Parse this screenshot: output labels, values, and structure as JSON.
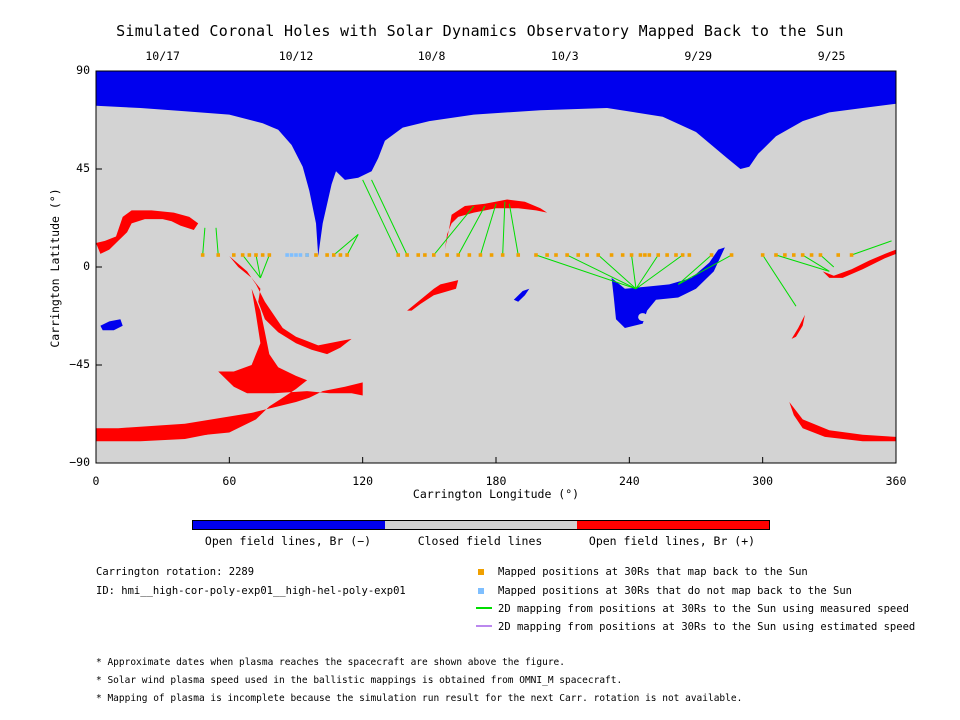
{
  "chart_data": {
    "type": "map",
    "title": "Simulated Coronal Holes with Solar Dynamics Observatory Mapped Back to the Sun",
    "xlabel": "Carrington Longitude (°)",
    "ylabel": "Carrington Latitude (°)",
    "xlim": [
      0,
      360
    ],
    "ylim": [
      -90,
      90
    ],
    "x_ticks": [
      "0",
      "60",
      "120",
      "180",
      "240",
      "300",
      "360"
    ],
    "y_ticks": [
      "90",
      "45",
      "0",
      "−45",
      "−90"
    ],
    "top_date_labels": [
      {
        "label": "10/17",
        "longitude": 30
      },
      {
        "label": "10/12",
        "longitude": 90
      },
      {
        "label": "10/8",
        "longitude": 151
      },
      {
        "label": "10/3",
        "longitude": 211
      },
      {
        "label": "9/29",
        "longitude": 271
      },
      {
        "label": "9/25",
        "longitude": 331
      }
    ],
    "colorbar": {
      "segments": [
        {
          "label": "Open field lines, Br (−)",
          "color": "#0000ee"
        },
        {
          "label": "Closed field lines",
          "color": "#d3d3d3"
        },
        {
          "label": "Open field lines, Br (+)",
          "color": "#ff0000"
        }
      ]
    },
    "mapped_positions_30Rs": {
      "latitude": 5.5,
      "map_back_longitudes": [
        48,
        55,
        62,
        66,
        69,
        72,
        75,
        78,
        95,
        99,
        104,
        107,
        110,
        113,
        136,
        140,
        145,
        148,
        152,
        158,
        163,
        168,
        173,
        178,
        183,
        190,
        198,
        203,
        207,
        212,
        217,
        221,
        226,
        232,
        237,
        241,
        245,
        247,
        249,
        253,
        257,
        261,
        264,
        267,
        277,
        286,
        300,
        306,
        310,
        314,
        318,
        322,
        326,
        334,
        340
      ],
      "no_map_back_longitudes": [
        86,
        88,
        90,
        92,
        95
      ]
    },
    "mapping_lines_2D_measured": [
      {
        "from": [
          48,
          5.5
        ],
        "to": [
          49,
          18
        ]
      },
      {
        "from": [
          55,
          5.5
        ],
        "to": [
          54,
          18
        ]
      },
      {
        "from": [
          66,
          5.5
        ],
        "to": [
          74,
          -5
        ]
      },
      {
        "from": [
          72,
          5.5
        ],
        "to": [
          74,
          -5
        ]
      },
      {
        "from": [
          78,
          5.5
        ],
        "to": [
          74,
          -5
        ]
      },
      {
        "from": [
          107,
          5.5
        ],
        "to": [
          118,
          15
        ]
      },
      {
        "from": [
          113,
          5.5
        ],
        "to": [
          118,
          15
        ]
      },
      {
        "from": [
          136,
          5.5
        ],
        "to": [
          120,
          40
        ]
      },
      {
        "from": [
          140,
          5.5
        ],
        "to": [
          124,
          40
        ]
      },
      {
        "from": [
          152,
          5.5
        ],
        "to": [
          170,
          28
        ]
      },
      {
        "from": [
          163,
          5.5
        ],
        "to": [
          175,
          28
        ]
      },
      {
        "from": [
          173,
          5.5
        ],
        "to": [
          180,
          29
        ]
      },
      {
        "from": [
          183,
          5.5
        ],
        "to": [
          184,
          30
        ]
      },
      {
        "from": [
          190,
          5.5
        ],
        "to": [
          186,
          29
        ]
      },
      {
        "from": [
          198,
          5.5
        ],
        "to": [
          243,
          -10
        ]
      },
      {
        "from": [
          212,
          5.5
        ],
        "to": [
          243,
          -10
        ]
      },
      {
        "from": [
          226,
          5.5
        ],
        "to": [
          243,
          -10
        ]
      },
      {
        "from": [
          241,
          5.5
        ],
        "to": [
          243,
          -10
        ]
      },
      {
        "from": [
          253,
          5.5
        ],
        "to": [
          243,
          -10
        ]
      },
      {
        "from": [
          264,
          5.5
        ],
        "to": [
          243,
          -10
        ]
      },
      {
        "from": [
          277,
          5.5
        ],
        "to": [
          262,
          -8
        ]
      },
      {
        "from": [
          286,
          5.5
        ],
        "to": [
          262,
          -8
        ]
      },
      {
        "from": [
          300,
          5.5
        ],
        "to": [
          315,
          -18
        ]
      },
      {
        "from": [
          306,
          5.5
        ],
        "to": [
          330,
          -2
        ]
      },
      {
        "from": [
          318,
          5.5
        ],
        "to": [
          330,
          -2
        ]
      },
      {
        "from": [
          326,
          5.5
        ],
        "to": [
          332,
          0
        ]
      },
      {
        "from": [
          340,
          5.5
        ],
        "to": [
          358,
          12
        ]
      }
    ],
    "legend": [
      {
        "label": "Mapped positions at 30Rs that map back to the Sun",
        "color": "#f0a000",
        "marker": "square"
      },
      {
        "label": "Mapped positions at 30Rs that do not map back to the Sun",
        "color": "#7fbfff",
        "marker": "square"
      },
      {
        "label": "2D mapping from positions at 30Rs to the Sun using measured speed",
        "color": "#00dd00",
        "marker": "line"
      },
      {
        "label": "2D mapping from positions at 30Rs to the Sun using estimated speed",
        "color": "#bb88ee",
        "marker": "line"
      }
    ],
    "carrington_rotation": "Carrington rotation: 2289",
    "run_id": "ID: hmi__high-cor-poly-exp01__high-hel-poly-exp01",
    "notes": [
      "* Approximate dates when plasma reaches the spacecraft are shown above the figure.",
      "* Solar wind plasma speed used in the ballistic mappings is obtained from OMNI_M spacecraft.",
      "* Mapping of plasma is incomplete because the simulation run result for the next Carr. rotation is not available."
    ]
  },
  "colors": {
    "closed": "#d3d3d3",
    "open_neg": "#0000ee",
    "open_pos": "#ff0000",
    "map_back": "#f0a000",
    "no_map_back": "#7fbfff",
    "measured_line": "#00dd00",
    "estimated_line": "#bb88ee"
  }
}
